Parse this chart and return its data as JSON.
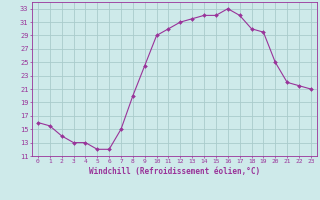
{
  "x": [
    0,
    1,
    2,
    3,
    4,
    5,
    6,
    7,
    8,
    9,
    10,
    11,
    12,
    13,
    14,
    15,
    16,
    17,
    18,
    19,
    20,
    21,
    22,
    23
  ],
  "y": [
    16,
    15.5,
    14,
    13,
    13,
    12,
    12,
    15,
    20,
    24.5,
    29,
    30,
    31,
    31.5,
    32,
    32,
    33,
    32,
    30,
    29.5,
    25,
    22,
    21.5,
    21
  ],
  "line_color": "#993399",
  "marker": "D",
  "marker_size": 2.0,
  "bg_color": "#ceeaea",
  "grid_color": "#aacccc",
  "xlabel": "Windchill (Refroidissement éolien,°C)",
  "xlabel_color": "#993399",
  "tick_color": "#993399",
  "ylim": [
    11,
    34
  ],
  "yticks": [
    11,
    13,
    15,
    17,
    19,
    21,
    23,
    25,
    27,
    29,
    31,
    33
  ],
  "xticks": [
    0,
    1,
    2,
    3,
    4,
    5,
    6,
    7,
    8,
    9,
    10,
    11,
    12,
    13,
    14,
    15,
    16,
    17,
    18,
    19,
    20,
    21,
    22,
    23
  ]
}
